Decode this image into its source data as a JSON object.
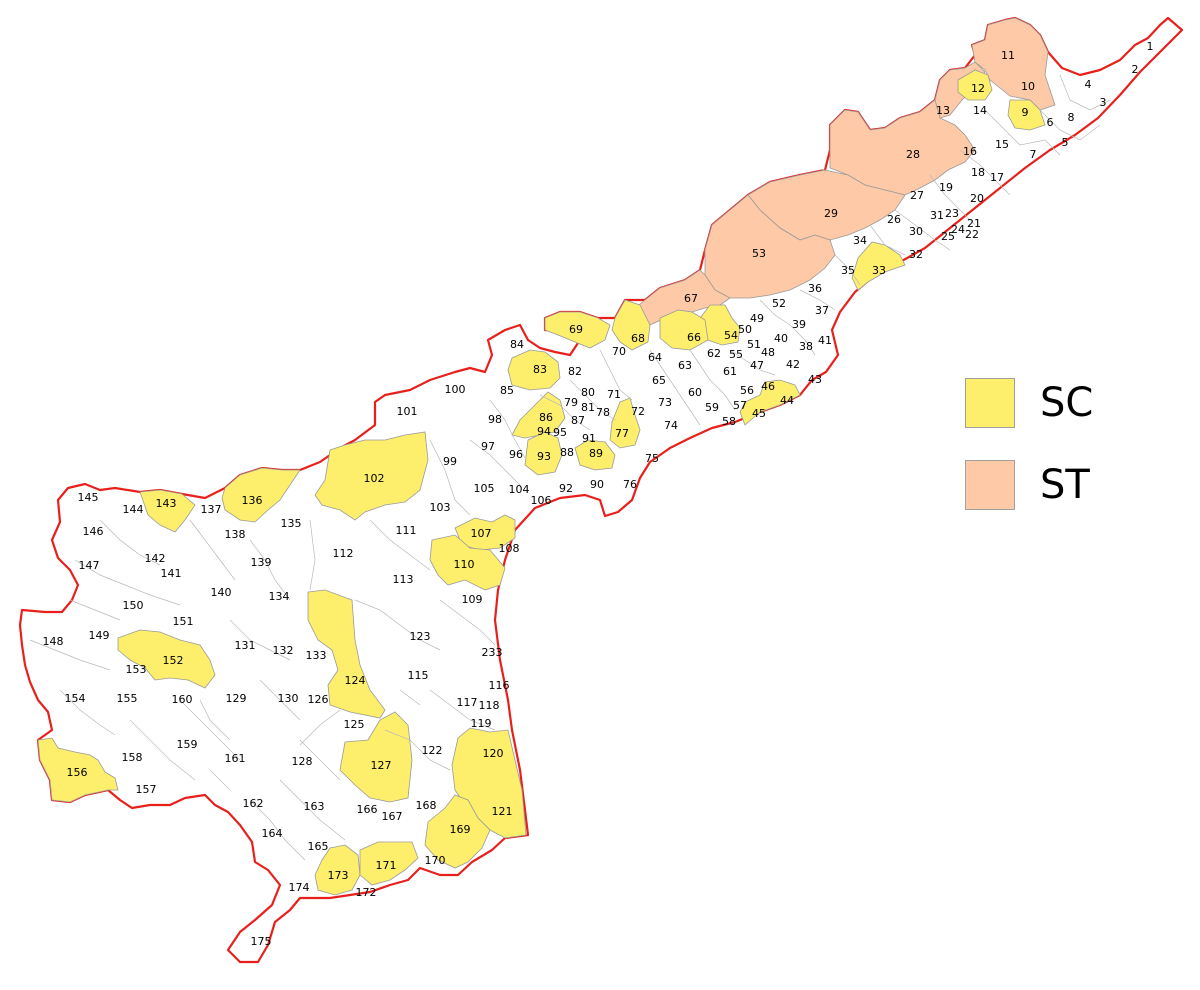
{
  "legend": {
    "sc": {
      "label": "SC",
      "color": "#fdee6c"
    },
    "st": {
      "label": "ST",
      "color": "#fdc9a6"
    }
  },
  "colors": {
    "border": "#e8201c",
    "boundary": "#b9b9b9",
    "general": "#ffffff"
  },
  "constituencies": [
    {
      "id": "1",
      "type": "general"
    },
    {
      "id": "2",
      "type": "general"
    },
    {
      "id": "3",
      "type": "general"
    },
    {
      "id": "4",
      "type": "general"
    },
    {
      "id": "5",
      "type": "general"
    },
    {
      "id": "6",
      "type": "general"
    },
    {
      "id": "7",
      "type": "general"
    },
    {
      "id": "8",
      "type": "general"
    },
    {
      "id": "9",
      "type": "sc"
    },
    {
      "id": "10",
      "type": "st"
    },
    {
      "id": "11",
      "type": "st"
    },
    {
      "id": "12",
      "type": "sc"
    },
    {
      "id": "13",
      "type": "st"
    },
    {
      "id": "14",
      "type": "general"
    },
    {
      "id": "15",
      "type": "general"
    },
    {
      "id": "16",
      "type": "general"
    },
    {
      "id": "17",
      "type": "general"
    },
    {
      "id": "18",
      "type": "general"
    },
    {
      "id": "19",
      "type": "general"
    },
    {
      "id": "20",
      "type": "general"
    },
    {
      "id": "21",
      "type": "general"
    },
    {
      "id": "22",
      "type": "general"
    },
    {
      "id": "23",
      "type": "general"
    },
    {
      "id": "24",
      "type": "general"
    },
    {
      "id": "25",
      "type": "general"
    },
    {
      "id": "26",
      "type": "general"
    },
    {
      "id": "27",
      "type": "general"
    },
    {
      "id": "28",
      "type": "st"
    },
    {
      "id": "29",
      "type": "st"
    },
    {
      "id": "30",
      "type": "general"
    },
    {
      "id": "31",
      "type": "general"
    },
    {
      "id": "32",
      "type": "general"
    },
    {
      "id": "33",
      "type": "sc"
    },
    {
      "id": "34",
      "type": "general"
    },
    {
      "id": "35",
      "type": "general"
    },
    {
      "id": "36",
      "type": "general"
    },
    {
      "id": "37",
      "type": "general"
    },
    {
      "id": "38",
      "type": "general"
    },
    {
      "id": "39",
      "type": "general"
    },
    {
      "id": "40",
      "type": "general"
    },
    {
      "id": "41",
      "type": "general"
    },
    {
      "id": "42",
      "type": "general"
    },
    {
      "id": "43",
      "type": "general"
    },
    {
      "id": "44",
      "type": "sc"
    },
    {
      "id": "45",
      "type": "sc"
    },
    {
      "id": "46",
      "type": "sc"
    },
    {
      "id": "47",
      "type": "general"
    },
    {
      "id": "48",
      "type": "general"
    },
    {
      "id": "49",
      "type": "general"
    },
    {
      "id": "50",
      "type": "general"
    },
    {
      "id": "51",
      "type": "general"
    },
    {
      "id": "52",
      "type": "general"
    },
    {
      "id": "53",
      "type": "st"
    },
    {
      "id": "54",
      "type": "sc"
    },
    {
      "id": "55",
      "type": "general"
    },
    {
      "id": "56",
      "type": "general"
    },
    {
      "id": "57",
      "type": "general"
    },
    {
      "id": "58",
      "type": "general"
    },
    {
      "id": "59",
      "type": "general"
    },
    {
      "id": "60",
      "type": "general"
    },
    {
      "id": "61",
      "type": "general"
    },
    {
      "id": "62",
      "type": "general"
    },
    {
      "id": "63",
      "type": "general"
    },
    {
      "id": "64",
      "type": "general"
    },
    {
      "id": "65",
      "type": "general"
    },
    {
      "id": "66",
      "type": "sc"
    },
    {
      "id": "67",
      "type": "st"
    },
    {
      "id": "68",
      "type": "sc"
    },
    {
      "id": "69",
      "type": "sc"
    },
    {
      "id": "70",
      "type": "general"
    },
    {
      "id": "71",
      "type": "general"
    },
    {
      "id": "72",
      "type": "general"
    },
    {
      "id": "73",
      "type": "general"
    },
    {
      "id": "74",
      "type": "general"
    },
    {
      "id": "75",
      "type": "general"
    },
    {
      "id": "76",
      "type": "general"
    },
    {
      "id": "77",
      "type": "sc"
    },
    {
      "id": "78",
      "type": "general"
    },
    {
      "id": "79",
      "type": "general"
    },
    {
      "id": "80",
      "type": "general"
    },
    {
      "id": "81",
      "type": "general"
    },
    {
      "id": "82",
      "type": "general"
    },
    {
      "id": "83",
      "type": "sc"
    },
    {
      "id": "84",
      "type": "general"
    },
    {
      "id": "85",
      "type": "general"
    },
    {
      "id": "86",
      "type": "sc"
    },
    {
      "id": "87",
      "type": "general"
    },
    {
      "id": "88",
      "type": "general"
    },
    {
      "id": "89",
      "type": "sc"
    },
    {
      "id": "90",
      "type": "general"
    },
    {
      "id": "91",
      "type": "general"
    },
    {
      "id": "92",
      "type": "general"
    },
    {
      "id": "93",
      "type": "sc"
    },
    {
      "id": "94",
      "type": "general"
    },
    {
      "id": "95",
      "type": "general"
    },
    {
      "id": "96",
      "type": "general"
    },
    {
      "id": "97",
      "type": "general"
    },
    {
      "id": "98",
      "type": "general"
    },
    {
      "id": "99",
      "type": "general"
    },
    {
      "id": "100",
      "type": "general"
    },
    {
      "id": "101",
      "type": "general"
    },
    {
      "id": "102",
      "type": "sc"
    },
    {
      "id": "103",
      "type": "general"
    },
    {
      "id": "104",
      "type": "general"
    },
    {
      "id": "105",
      "type": "general"
    },
    {
      "id": "106",
      "type": "general"
    },
    {
      "id": "107",
      "type": "sc"
    },
    {
      "id": "108",
      "type": "general"
    },
    {
      "id": "109",
      "type": "general"
    },
    {
      "id": "110",
      "type": "sc"
    },
    {
      "id": "111",
      "type": "general"
    },
    {
      "id": "112",
      "type": "general"
    },
    {
      "id": "113",
      "type": "general"
    },
    {
      "id": "115",
      "type": "general"
    },
    {
      "id": "116",
      "type": "general"
    },
    {
      "id": "117",
      "type": "general"
    },
    {
      "id": "118",
      "type": "general"
    },
    {
      "id": "119",
      "type": "general"
    },
    {
      "id": "120",
      "type": "sc"
    },
    {
      "id": "121",
      "type": "sc"
    },
    {
      "id": "122",
      "type": "general"
    },
    {
      "id": "123",
      "type": "general"
    },
    {
      "id": "124",
      "type": "sc"
    },
    {
      "id": "125",
      "type": "general"
    },
    {
      "id": "126",
      "type": "general"
    },
    {
      "id": "127",
      "type": "sc"
    },
    {
      "id": "128",
      "type": "general"
    },
    {
      "id": "129",
      "type": "general"
    },
    {
      "id": "130",
      "type": "general"
    },
    {
      "id": "131",
      "type": "general"
    },
    {
      "id": "132",
      "type": "general"
    },
    {
      "id": "133",
      "type": "general"
    },
    {
      "id": "134",
      "type": "general"
    },
    {
      "id": "135",
      "type": "general"
    },
    {
      "id": "136",
      "type": "sc"
    },
    {
      "id": "137",
      "type": "general"
    },
    {
      "id": "138",
      "type": "general"
    },
    {
      "id": "139",
      "type": "general"
    },
    {
      "id": "140",
      "type": "general"
    },
    {
      "id": "141",
      "type": "general"
    },
    {
      "id": "142",
      "type": "general"
    },
    {
      "id": "143",
      "type": "sc"
    },
    {
      "id": "144",
      "type": "general"
    },
    {
      "id": "145",
      "type": "general"
    },
    {
      "id": "146",
      "type": "general"
    },
    {
      "id": "147",
      "type": "general"
    },
    {
      "id": "148",
      "type": "general"
    },
    {
      "id": "149",
      "type": "general"
    },
    {
      "id": "150",
      "type": "general"
    },
    {
      "id": "151",
      "type": "general"
    },
    {
      "id": "152",
      "type": "sc"
    },
    {
      "id": "153",
      "type": "general"
    },
    {
      "id": "154",
      "type": "general"
    },
    {
      "id": "155",
      "type": "general"
    },
    {
      "id": "156",
      "type": "sc"
    },
    {
      "id": "157",
      "type": "general"
    },
    {
      "id": "158",
      "type": "general"
    },
    {
      "id": "159",
      "type": "general"
    },
    {
      "id": "160",
      "type": "general"
    },
    {
      "id": "161",
      "type": "general"
    },
    {
      "id": "162",
      "type": "general"
    },
    {
      "id": "163",
      "type": "general"
    },
    {
      "id": "164",
      "type": "general"
    },
    {
      "id": "165",
      "type": "general"
    },
    {
      "id": "166",
      "type": "general"
    },
    {
      "id": "167",
      "type": "general"
    },
    {
      "id": "168",
      "type": "general"
    },
    {
      "id": "169",
      "type": "sc"
    },
    {
      "id": "170",
      "type": "general"
    },
    {
      "id": "171",
      "type": "sc"
    },
    {
      "id": "172",
      "type": "general"
    },
    {
      "id": "173",
      "type": "sc"
    },
    {
      "id": "174",
      "type": "general"
    },
    {
      "id": "175",
      "type": "general"
    },
    {
      "id": "233",
      "type": "general"
    }
  ]
}
